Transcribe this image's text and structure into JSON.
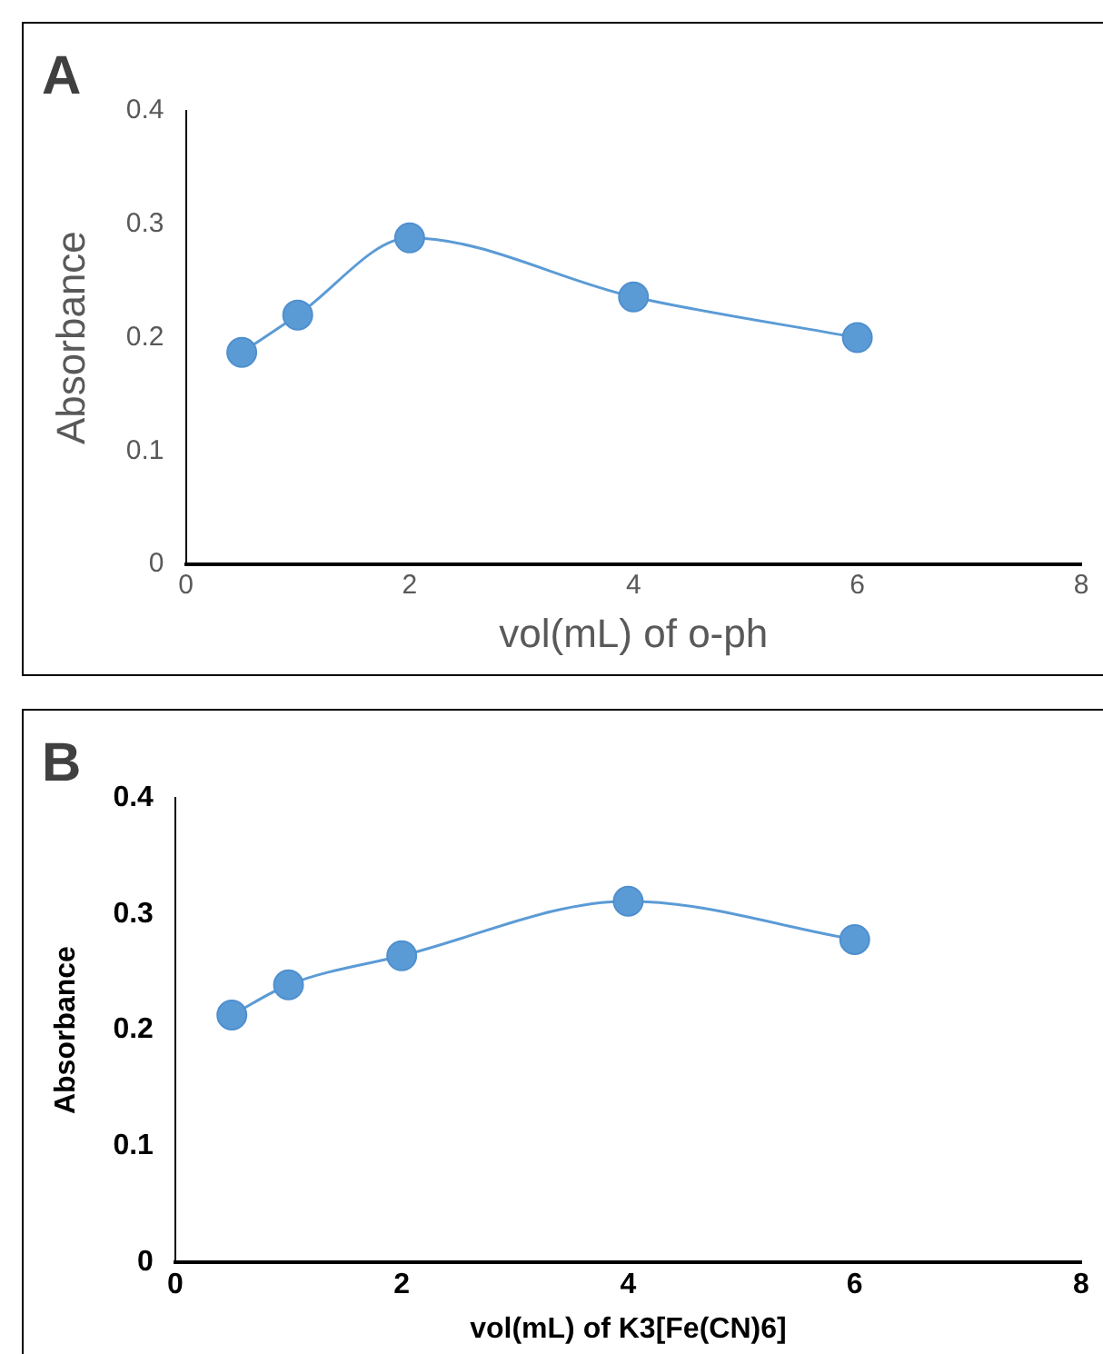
{
  "chart_data": [
    {
      "type": "line",
      "title": "A",
      "xlabel": "vol(mL) of o-ph",
      "ylabel": "Absorbance",
      "x": [
        0.5,
        1,
        2,
        4,
        6
      ],
      "series": [
        {
          "color": "#5b9bd5",
          "values": [
            0.187,
            0.22,
            0.288,
            0.236,
            0.2
          ]
        }
      ],
      "xlim": [
        0,
        8
      ],
      "xticks": [
        0,
        2,
        4,
        6,
        8
      ],
      "ylim": [
        0,
        0.4
      ],
      "yticks": [
        0,
        0.1,
        0.2,
        0.3,
        0.4
      ],
      "grid": false,
      "legend": false,
      "marker": "circle",
      "line_style": "solid"
    },
    {
      "type": "line",
      "title": "B",
      "xlabel": "vol(mL) of K3[Fe(CN)6]",
      "ylabel": "Absorbance",
      "x": [
        0.5,
        1,
        2,
        4,
        6
      ],
      "series": [
        {
          "color": "#5b9bd5",
          "values": [
            0.213,
            0.239,
            0.264,
            0.311,
            0.278
          ]
        }
      ],
      "xlim": [
        0,
        8
      ],
      "xticks": [
        0,
        2,
        4,
        6,
        8
      ],
      "ylim": [
        0,
        0.4
      ],
      "yticks": [
        0,
        0.1,
        0.2,
        0.3,
        0.4
      ],
      "grid": false,
      "legend": false,
      "marker": "circle",
      "line_style": "solid"
    }
  ]
}
